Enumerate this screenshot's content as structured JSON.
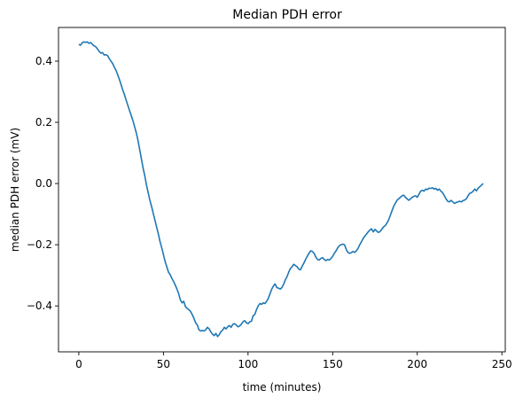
{
  "chart_data": {
    "type": "line",
    "title": "Median PDH error",
    "xlabel": "time (minutes)",
    "ylabel": "median PDH error (mV)",
    "xlim": [
      -12,
      252
    ],
    "ylim": [
      -0.55,
      0.51
    ],
    "xticks": [
      0,
      50,
      100,
      150,
      200,
      250
    ],
    "yticks": [
      0.4,
      0.2,
      0.0,
      -0.2,
      -0.4
    ],
    "xtick_labels": [
      "0",
      "50",
      "100",
      "150",
      "200",
      "250"
    ],
    "ytick_labels": [
      "0.4",
      "0.2",
      "0.0",
      "−0.2",
      "−0.4"
    ],
    "grid": false,
    "legend": "none",
    "series": [
      {
        "color": "#1f77b4",
        "points": [
          [
            0,
            0.455
          ],
          [
            1,
            0.452
          ],
          [
            2,
            0.46
          ],
          [
            3,
            0.463
          ],
          [
            4,
            0.461
          ],
          [
            5,
            0.463
          ],
          [
            6,
            0.458
          ],
          [
            7,
            0.461
          ],
          [
            8,
            0.455
          ],
          [
            9,
            0.45
          ],
          [
            10,
            0.447
          ],
          [
            11,
            0.44
          ],
          [
            12,
            0.432
          ],
          [
            13,
            0.426
          ],
          [
            14,
            0.428
          ],
          [
            15,
            0.42
          ],
          [
            16,
            0.421
          ],
          [
            17,
            0.418
          ],
          [
            18,
            0.408
          ],
          [
            19,
            0.4
          ],
          [
            20,
            0.392
          ],
          [
            21,
            0.38
          ],
          [
            22,
            0.37
          ],
          [
            23,
            0.355
          ],
          [
            24,
            0.34
          ],
          [
            25,
            0.323
          ],
          [
            26,
            0.305
          ],
          [
            27,
            0.29
          ],
          [
            28,
            0.272
          ],
          [
            29,
            0.255
          ],
          [
            30,
            0.238
          ],
          [
            31,
            0.222
          ],
          [
            32,
            0.205
          ],
          [
            33,
            0.185
          ],
          [
            34,
            0.165
          ],
          [
            35,
            0.14
          ],
          [
            36,
            0.11
          ],
          [
            37,
            0.08
          ],
          [
            38,
            0.05
          ],
          [
            39,
            0.025
          ],
          [
            40,
            -0.005
          ],
          [
            41,
            -0.03
          ],
          [
            42,
            -0.055
          ],
          [
            43,
            -0.075
          ],
          [
            44,
            -0.098
          ],
          [
            45,
            -0.12
          ],
          [
            46,
            -0.143
          ],
          [
            47,
            -0.165
          ],
          [
            48,
            -0.19
          ],
          [
            49,
            -0.21
          ],
          [
            50,
            -0.232
          ],
          [
            51,
            -0.255
          ],
          [
            52,
            -0.272
          ],
          [
            53,
            -0.29
          ],
          [
            54,
            -0.298
          ],
          [
            55,
            -0.31
          ],
          [
            56,
            -0.32
          ],
          [
            57,
            -0.332
          ],
          [
            58,
            -0.345
          ],
          [
            59,
            -0.36
          ],
          [
            60,
            -0.38
          ],
          [
            61,
            -0.39
          ],
          [
            62,
            -0.385
          ],
          [
            63,
            -0.402
          ],
          [
            64,
            -0.408
          ],
          [
            65,
            -0.412
          ],
          [
            66,
            -0.418
          ],
          [
            67,
            -0.428
          ],
          [
            68,
            -0.44
          ],
          [
            69,
            -0.455
          ],
          [
            70,
            -0.462
          ],
          [
            71,
            -0.478
          ],
          [
            72,
            -0.482
          ],
          [
            73,
            -0.48
          ],
          [
            74,
            -0.482
          ],
          [
            75,
            -0.478
          ],
          [
            76,
            -0.47
          ],
          [
            77,
            -0.475
          ],
          [
            78,
            -0.485
          ],
          [
            79,
            -0.492
          ],
          [
            80,
            -0.497
          ],
          [
            81,
            -0.49
          ],
          [
            82,
            -0.5
          ],
          [
            83,
            -0.494
          ],
          [
            84,
            -0.484
          ],
          [
            85,
            -0.479
          ],
          [
            86,
            -0.47
          ],
          [
            87,
            -0.475
          ],
          [
            88,
            -0.468
          ],
          [
            89,
            -0.464
          ],
          [
            90,
            -0.47
          ],
          [
            91,
            -0.46
          ],
          [
            92,
            -0.458
          ],
          [
            93,
            -0.462
          ],
          [
            94,
            -0.468
          ],
          [
            95,
            -0.466
          ],
          [
            96,
            -0.46
          ],
          [
            97,
            -0.452
          ],
          [
            98,
            -0.448
          ],
          [
            99,
            -0.455
          ],
          [
            100,
            -0.458
          ],
          [
            101,
            -0.452
          ],
          [
            102,
            -0.45
          ],
          [
            103,
            -0.432
          ],
          [
            104,
            -0.428
          ],
          [
            105,
            -0.412
          ],
          [
            106,
            -0.4
          ],
          [
            107,
            -0.392
          ],
          [
            108,
            -0.395
          ],
          [
            109,
            -0.39
          ],
          [
            110,
            -0.392
          ],
          [
            111,
            -0.385
          ],
          [
            112,
            -0.375
          ],
          [
            113,
            -0.36
          ],
          [
            114,
            -0.345
          ],
          [
            115,
            -0.335
          ],
          [
            116,
            -0.328
          ],
          [
            117,
            -0.34
          ],
          [
            118,
            -0.342
          ],
          [
            119,
            -0.345
          ],
          [
            120,
            -0.34
          ],
          [
            121,
            -0.33
          ],
          [
            122,
            -0.315
          ],
          [
            123,
            -0.305
          ],
          [
            124,
            -0.29
          ],
          [
            125,
            -0.278
          ],
          [
            126,
            -0.272
          ],
          [
            127,
            -0.264
          ],
          [
            128,
            -0.268
          ],
          [
            129,
            -0.272
          ],
          [
            130,
            -0.28
          ],
          [
            131,
            -0.282
          ],
          [
            132,
            -0.27
          ],
          [
            133,
            -0.26
          ],
          [
            134,
            -0.248
          ],
          [
            135,
            -0.238
          ],
          [
            136,
            -0.228
          ],
          [
            137,
            -0.22
          ],
          [
            138,
            -0.222
          ],
          [
            139,
            -0.228
          ],
          [
            140,
            -0.24
          ],
          [
            141,
            -0.248
          ],
          [
            142,
            -0.25
          ],
          [
            143,
            -0.245
          ],
          [
            144,
            -0.242
          ],
          [
            145,
            -0.248
          ],
          [
            146,
            -0.252
          ],
          [
            147,
            -0.248
          ],
          [
            148,
            -0.25
          ],
          [
            149,
            -0.245
          ],
          [
            150,
            -0.238
          ],
          [
            151,
            -0.228
          ],
          [
            152,
            -0.22
          ],
          [
            153,
            -0.21
          ],
          [
            154,
            -0.203
          ],
          [
            155,
            -0.2
          ],
          [
            156,
            -0.198
          ],
          [
            157,
            -0.2
          ],
          [
            158,
            -0.215
          ],
          [
            159,
            -0.225
          ],
          [
            160,
            -0.228
          ],
          [
            161,
            -0.226
          ],
          [
            162,
            -0.222
          ],
          [
            163,
            -0.225
          ],
          [
            164,
            -0.22
          ],
          [
            165,
            -0.212
          ],
          [
            166,
            -0.2
          ],
          [
            167,
            -0.19
          ],
          [
            168,
            -0.18
          ],
          [
            169,
            -0.172
          ],
          [
            170,
            -0.165
          ],
          [
            171,
            -0.158
          ],
          [
            172,
            -0.152
          ],
          [
            173,
            -0.148
          ],
          [
            174,
            -0.158
          ],
          [
            175,
            -0.15
          ],
          [
            176,
            -0.155
          ],
          [
            177,
            -0.16
          ],
          [
            178,
            -0.157
          ],
          [
            179,
            -0.15
          ],
          [
            180,
            -0.142
          ],
          [
            181,
            -0.138
          ],
          [
            182,
            -0.13
          ],
          [
            183,
            -0.12
          ],
          [
            184,
            -0.105
          ],
          [
            185,
            -0.09
          ],
          [
            186,
            -0.075
          ],
          [
            187,
            -0.065
          ],
          [
            188,
            -0.055
          ],
          [
            189,
            -0.05
          ],
          [
            190,
            -0.045
          ],
          [
            191,
            -0.04
          ],
          [
            192,
            -0.038
          ],
          [
            193,
            -0.045
          ],
          [
            194,
            -0.05
          ],
          [
            195,
            -0.055
          ],
          [
            196,
            -0.05
          ],
          [
            197,
            -0.045
          ],
          [
            198,
            -0.042
          ],
          [
            199,
            -0.04
          ],
          [
            200,
            -0.045
          ],
          [
            201,
            -0.035
          ],
          [
            202,
            -0.025
          ],
          [
            203,
            -0.022
          ],
          [
            204,
            -0.025
          ],
          [
            205,
            -0.018
          ],
          [
            206,
            -0.02
          ],
          [
            207,
            -0.015
          ],
          [
            208,
            -0.016
          ],
          [
            209,
            -0.014
          ],
          [
            210,
            -0.018
          ],
          [
            211,
            -0.016
          ],
          [
            212,
            -0.022
          ],
          [
            213,
            -0.018
          ],
          [
            214,
            -0.025
          ],
          [
            215,
            -0.03
          ],
          [
            216,
            -0.04
          ],
          [
            217,
            -0.05
          ],
          [
            218,
            -0.058
          ],
          [
            219,
            -0.06
          ],
          [
            220,
            -0.055
          ],
          [
            221,
            -0.06
          ],
          [
            222,
            -0.065
          ],
          [
            223,
            -0.062
          ],
          [
            224,
            -0.06
          ],
          [
            225,
            -0.058
          ],
          [
            226,
            -0.06
          ],
          [
            227,
            -0.056
          ],
          [
            228,
            -0.054
          ],
          [
            229,
            -0.05
          ],
          [
            230,
            -0.04
          ],
          [
            231,
            -0.032
          ],
          [
            232,
            -0.03
          ],
          [
            233,
            -0.025
          ],
          [
            234,
            -0.018
          ],
          [
            235,
            -0.024
          ],
          [
            236,
            -0.015
          ],
          [
            237,
            -0.01
          ],
          [
            238,
            -0.005
          ],
          [
            239,
            0.0
          ]
        ]
      }
    ]
  }
}
